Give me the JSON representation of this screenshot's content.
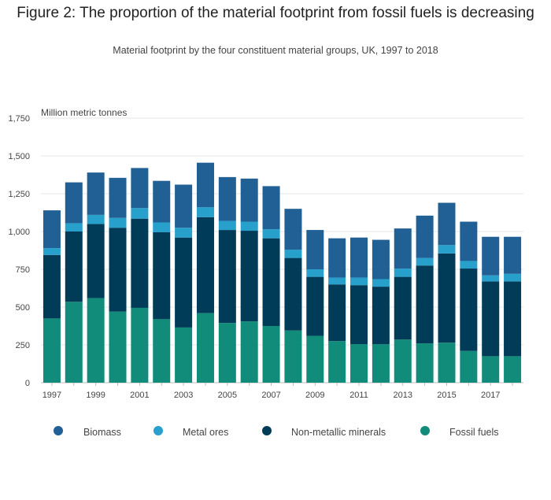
{
  "title": "Figure 2: The proportion of the material footprint from fossil fuels is decreasing",
  "subtitle": "Material footprint by the four constituent material groups, UK, 1997 to 2018",
  "chart_data": {
    "type": "bar",
    "stacked": true,
    "ylabel": "Million metric tonnes",
    "ylim": [
      0,
      1750
    ],
    "yticks": [
      0,
      250,
      500,
      750,
      1000,
      1250,
      1500,
      1750
    ],
    "ytick_labels": [
      "0",
      "250",
      "500",
      "750",
      "1,000",
      "1,250",
      "1,500",
      "1,750"
    ],
    "grid": true,
    "legend_position": "bottom",
    "categories": [
      "1997",
      "1998",
      "1999",
      "2000",
      "2001",
      "2002",
      "2003",
      "2004",
      "2005",
      "2006",
      "2007",
      "2008",
      "2009",
      "2010",
      "2011",
      "2012",
      "2013",
      "2014",
      "2015",
      "2016",
      "2017",
      "2018"
    ],
    "xtick_labels": [
      "1997",
      "",
      "1999",
      "",
      "2001",
      "",
      "2003",
      "",
      "2005",
      "",
      "2007",
      "",
      "2009",
      "",
      "2011",
      "",
      "2013",
      "",
      "2015",
      "",
      "2017",
      ""
    ],
    "series": [
      {
        "name": "Fossil fuels",
        "color": "#118c7b",
        "values": [
          425,
          535,
          560,
          470,
          495,
          420,
          365,
          460,
          395,
          405,
          375,
          345,
          310,
          275,
          255,
          255,
          285,
          260,
          265,
          210,
          175,
          175
        ]
      },
      {
        "name": "Non-metallic minerals",
        "color": "#003c57",
        "values": [
          420,
          465,
          490,
          555,
          590,
          575,
          595,
          635,
          615,
          600,
          580,
          480,
          390,
          375,
          390,
          380,
          415,
          515,
          590,
          545,
          495,
          495
        ]
      },
      {
        "name": "Metal ores",
        "color": "#27a0cc",
        "values": [
          45,
          55,
          60,
          65,
          70,
          65,
          65,
          65,
          60,
          60,
          60,
          55,
          50,
          45,
          50,
          50,
          55,
          50,
          55,
          50,
          40,
          50
        ]
      },
      {
        "name": "Biomass",
        "color": "#206095",
        "values": [
          250,
          270,
          280,
          265,
          265,
          275,
          285,
          295,
          290,
          285,
          285,
          270,
          260,
          260,
          265,
          260,
          265,
          280,
          280,
          260,
          255,
          245
        ]
      }
    ]
  },
  "legend": [
    {
      "label": "Biomass",
      "color": "#206095"
    },
    {
      "label": "Metal ores",
      "color": "#27a0cc"
    },
    {
      "label": "Non-metallic minerals",
      "color": "#003c57"
    },
    {
      "label": "Fossil fuels",
      "color": "#118c7b"
    }
  ]
}
